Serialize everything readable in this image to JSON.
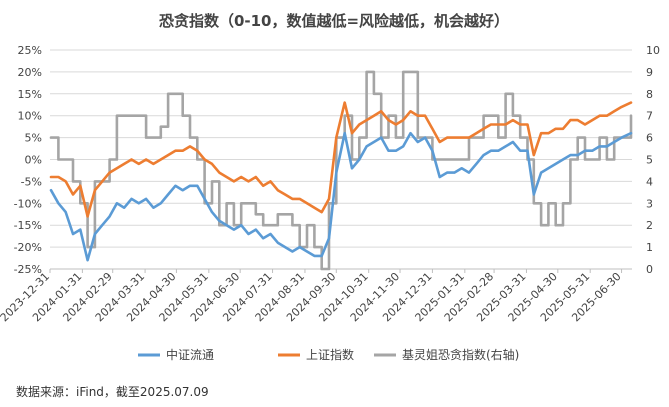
{
  "chart_data": {
    "type": "line",
    "title": "恐贪指数（0-10，数值越低=风险越低，机会越好）",
    "x_dates": [
      "2023-12-31",
      "2024-01-31",
      "2024-02-29",
      "2024-03-31",
      "2024-04-30",
      "2024-05-31",
      "2024-06-30",
      "2024-07-31",
      "2024-08-31",
      "2024-09-30",
      "2024-10-31",
      "2024-11-30",
      "2024-12-31",
      "2025-01-31",
      "2025-02-28",
      "2025-03-31",
      "2025-04-30",
      "2025-05-31",
      "2025-06-30"
    ],
    "y_left_ticks": [
      "25%",
      "20%",
      "15%",
      "10%",
      "5%",
      "0%",
      "-5%",
      "-10%",
      "-15%",
      "-20%",
      "-25%"
    ],
    "y_left_range": [
      -25,
      25
    ],
    "y_right_ticks": [
      "10",
      "9",
      "8",
      "7",
      "6",
      "5",
      "4",
      "3",
      "2",
      "1",
      "0"
    ],
    "y_right_range": [
      0,
      10
    ],
    "series": [
      {
        "name": "中证流通",
        "color": "#5B9BD5",
        "axis": "left",
        "points": [
          [
            "2024-01-01",
            -7
          ],
          [
            "2024-01-08",
            -10
          ],
          [
            "2024-01-15",
            -12
          ],
          [
            "2024-01-22",
            -17
          ],
          [
            "2024-01-29",
            -16
          ],
          [
            "2024-02-05",
            -23
          ],
          [
            "2024-02-12",
            -17
          ],
          [
            "2024-02-19",
            -15
          ],
          [
            "2024-02-26",
            -13
          ],
          [
            "2024-03-04",
            -10
          ],
          [
            "2024-03-11",
            -11
          ],
          [
            "2024-03-18",
            -9
          ],
          [
            "2024-03-25",
            -10
          ],
          [
            "2024-04-01",
            -9
          ],
          [
            "2024-04-08",
            -11
          ],
          [
            "2024-04-15",
            -10
          ],
          [
            "2024-04-22",
            -8
          ],
          [
            "2024-04-29",
            -6
          ],
          [
            "2024-05-06",
            -7
          ],
          [
            "2024-05-13",
            -6
          ],
          [
            "2024-05-20",
            -6
          ],
          [
            "2024-05-27",
            -9
          ],
          [
            "2024-06-03",
            -12
          ],
          [
            "2024-06-10",
            -14
          ],
          [
            "2024-06-17",
            -15
          ],
          [
            "2024-06-24",
            -16
          ],
          [
            "2024-07-01",
            -15
          ],
          [
            "2024-07-08",
            -17
          ],
          [
            "2024-07-15",
            -16
          ],
          [
            "2024-07-22",
            -18
          ],
          [
            "2024-07-29",
            -17
          ],
          [
            "2024-08-05",
            -19
          ],
          [
            "2024-08-12",
            -20
          ],
          [
            "2024-08-19",
            -21
          ],
          [
            "2024-08-26",
            -20
          ],
          [
            "2024-09-02",
            -21
          ],
          [
            "2024-09-09",
            -22
          ],
          [
            "2024-09-16",
            -22
          ],
          [
            "2024-09-23",
            -18
          ],
          [
            "2024-09-30",
            -3
          ],
          [
            "2024-10-08",
            6
          ],
          [
            "2024-10-15",
            -2
          ],
          [
            "2024-10-22",
            0
          ],
          [
            "2024-10-29",
            3
          ],
          [
            "2024-11-05",
            4
          ],
          [
            "2024-11-12",
            5
          ],
          [
            "2024-11-19",
            2
          ],
          [
            "2024-11-26",
            2
          ],
          [
            "2024-12-03",
            3
          ],
          [
            "2024-12-10",
            6
          ],
          [
            "2024-12-17",
            4
          ],
          [
            "2024-12-24",
            5
          ],
          [
            "2024-12-31",
            2
          ],
          [
            "2025-01-07",
            -4
          ],
          [
            "2025-01-14",
            -3
          ],
          [
            "2025-01-21",
            -3
          ],
          [
            "2025-01-28",
            -2
          ],
          [
            "2025-02-04",
            -3
          ],
          [
            "2025-02-11",
            -1
          ],
          [
            "2025-02-18",
            1
          ],
          [
            "2025-02-25",
            2
          ],
          [
            "2025-03-04",
            2
          ],
          [
            "2025-03-11",
            3
          ],
          [
            "2025-03-18",
            4
          ],
          [
            "2025-03-25",
            2
          ],
          [
            "2025-04-01",
            2
          ],
          [
            "2025-04-07",
            -8
          ],
          [
            "2025-04-14",
            -3
          ],
          [
            "2025-04-21",
            -2
          ],
          [
            "2025-04-28",
            -1
          ],
          [
            "2025-05-05",
            0
          ],
          [
            "2025-05-12",
            1
          ],
          [
            "2025-05-19",
            1
          ],
          [
            "2025-05-26",
            2
          ],
          [
            "2025-06-02",
            2
          ],
          [
            "2025-06-09",
            3
          ],
          [
            "2025-06-16",
            3
          ],
          [
            "2025-06-23",
            4
          ],
          [
            "2025-06-30",
            5
          ],
          [
            "2025-07-09",
            6
          ]
        ]
      },
      {
        "name": "上证指数",
        "color": "#ED7D31",
        "axis": "left",
        "points": [
          [
            "2024-01-01",
            -4
          ],
          [
            "2024-01-08",
            -4
          ],
          [
            "2024-01-15",
            -5
          ],
          [
            "2024-01-22",
            -8
          ],
          [
            "2024-01-29",
            -6
          ],
          [
            "2024-02-05",
            -13
          ],
          [
            "2024-02-12",
            -7
          ],
          [
            "2024-02-19",
            -5
          ],
          [
            "2024-02-26",
            -3
          ],
          [
            "2024-03-04",
            -2
          ],
          [
            "2024-03-11",
            -1
          ],
          [
            "2024-03-18",
            0
          ],
          [
            "2024-03-25",
            -1
          ],
          [
            "2024-04-01",
            0
          ],
          [
            "2024-04-08",
            -1
          ],
          [
            "2024-04-15",
            0
          ],
          [
            "2024-04-22",
            1
          ],
          [
            "2024-04-29",
            2
          ],
          [
            "2024-05-06",
            2
          ],
          [
            "2024-05-13",
            3
          ],
          [
            "2024-05-20",
            2
          ],
          [
            "2024-05-27",
            0
          ],
          [
            "2024-06-03",
            -1
          ],
          [
            "2024-06-10",
            -3
          ],
          [
            "2024-06-17",
            -4
          ],
          [
            "2024-06-24",
            -5
          ],
          [
            "2024-07-01",
            -4
          ],
          [
            "2024-07-08",
            -5
          ],
          [
            "2024-07-15",
            -4
          ],
          [
            "2024-07-22",
            -6
          ],
          [
            "2024-07-29",
            -5
          ],
          [
            "2024-08-05",
            -7
          ],
          [
            "2024-08-12",
            -8
          ],
          [
            "2024-08-19",
            -9
          ],
          [
            "2024-08-26",
            -9
          ],
          [
            "2024-09-02",
            -10
          ],
          [
            "2024-09-09",
            -11
          ],
          [
            "2024-09-16",
            -12
          ],
          [
            "2024-09-23",
            -9
          ],
          [
            "2024-09-30",
            5
          ],
          [
            "2024-10-08",
            13
          ],
          [
            "2024-10-15",
            6
          ],
          [
            "2024-10-22",
            8
          ],
          [
            "2024-10-29",
            9
          ],
          [
            "2024-11-05",
            10
          ],
          [
            "2024-11-12",
            11
          ],
          [
            "2024-11-19",
            9
          ],
          [
            "2024-11-26",
            8
          ],
          [
            "2024-12-03",
            9
          ],
          [
            "2024-12-10",
            11
          ],
          [
            "2024-12-17",
            10
          ],
          [
            "2024-12-24",
            10
          ],
          [
            "2024-12-31",
            7
          ],
          [
            "2025-01-07",
            4
          ],
          [
            "2025-01-14",
            5
          ],
          [
            "2025-01-21",
            5
          ],
          [
            "2025-01-28",
            5
          ],
          [
            "2025-02-04",
            5
          ],
          [
            "2025-02-11",
            6
          ],
          [
            "2025-02-18",
            7
          ],
          [
            "2025-02-25",
            8
          ],
          [
            "2025-03-04",
            8
          ],
          [
            "2025-03-11",
            8
          ],
          [
            "2025-03-18",
            9
          ],
          [
            "2025-03-25",
            8
          ],
          [
            "2025-04-01",
            8
          ],
          [
            "2025-04-07",
            1
          ],
          [
            "2025-04-14",
            6
          ],
          [
            "2025-04-21",
            6
          ],
          [
            "2025-04-28",
            7
          ],
          [
            "2025-05-05",
            7
          ],
          [
            "2025-05-12",
            9
          ],
          [
            "2025-05-19",
            9
          ],
          [
            "2025-05-26",
            8
          ],
          [
            "2025-06-02",
            9
          ],
          [
            "2025-06-09",
            10
          ],
          [
            "2025-06-16",
            10
          ],
          [
            "2025-06-23",
            11
          ],
          [
            "2025-06-30",
            12
          ],
          [
            "2025-07-09",
            13
          ]
        ]
      },
      {
        "name": "基灵姐恐贪指数(右轴)",
        "color": "#A5A5A5",
        "axis": "right",
        "step": true,
        "points": [
          [
            "2024-01-01",
            6
          ],
          [
            "2024-01-08",
            5
          ],
          [
            "2024-01-22",
            4
          ],
          [
            "2024-01-29",
            3
          ],
          [
            "2024-02-05",
            1
          ],
          [
            "2024-02-12",
            4
          ],
          [
            "2024-02-26",
            5
          ],
          [
            "2024-03-04",
            7
          ],
          [
            "2024-04-01",
            6
          ],
          [
            "2024-04-15",
            6.5
          ],
          [
            "2024-04-22",
            8
          ],
          [
            "2024-05-06",
            7
          ],
          [
            "2024-05-13",
            6
          ],
          [
            "2024-05-20",
            5
          ],
          [
            "2024-05-27",
            3
          ],
          [
            "2024-06-03",
            4
          ],
          [
            "2024-06-10",
            2
          ],
          [
            "2024-06-17",
            3
          ],
          [
            "2024-06-24",
            2
          ],
          [
            "2024-07-01",
            3
          ],
          [
            "2024-07-15",
            2.5
          ],
          [
            "2024-07-22",
            2
          ],
          [
            "2024-08-05",
            2.5
          ],
          [
            "2024-08-19",
            2
          ],
          [
            "2024-08-26",
            1
          ],
          [
            "2024-09-02",
            2
          ],
          [
            "2024-09-09",
            1
          ],
          [
            "2024-09-16",
            0
          ],
          [
            "2024-09-23",
            3
          ],
          [
            "2024-09-30",
            6
          ],
          [
            "2024-10-08",
            7
          ],
          [
            "2024-10-15",
            5
          ],
          [
            "2024-10-22",
            6
          ],
          [
            "2024-10-29",
            9
          ],
          [
            "2024-11-05",
            8
          ],
          [
            "2024-11-12",
            6
          ],
          [
            "2024-11-19",
            7
          ],
          [
            "2024-11-26",
            6
          ],
          [
            "2024-12-03",
            9
          ],
          [
            "2024-12-17",
            6
          ],
          [
            "2024-12-31",
            5
          ],
          [
            "2025-01-14",
            5
          ],
          [
            "2025-02-04",
            6
          ],
          [
            "2025-02-18",
            7
          ],
          [
            "2025-03-04",
            6
          ],
          [
            "2025-03-11",
            8
          ],
          [
            "2025-03-18",
            7
          ],
          [
            "2025-03-25",
            6
          ],
          [
            "2025-04-01",
            5
          ],
          [
            "2025-04-07",
            3
          ],
          [
            "2025-04-14",
            2
          ],
          [
            "2025-04-21",
            3
          ],
          [
            "2025-04-28",
            2
          ],
          [
            "2025-05-05",
            3
          ],
          [
            "2025-05-12",
            5
          ],
          [
            "2025-05-19",
            6
          ],
          [
            "2025-05-26",
            5
          ],
          [
            "2025-06-09",
            6
          ],
          [
            "2025-06-16",
            5
          ],
          [
            "2025-06-23",
            6
          ],
          [
            "2025-07-02",
            6
          ],
          [
            "2025-07-09",
            7
          ]
        ]
      }
    ],
    "legend_position": "bottom",
    "grid": {
      "horizontal": true,
      "vertical": false
    }
  },
  "footer": {
    "source": "数据来源：iFind，截至2025.07.09"
  }
}
